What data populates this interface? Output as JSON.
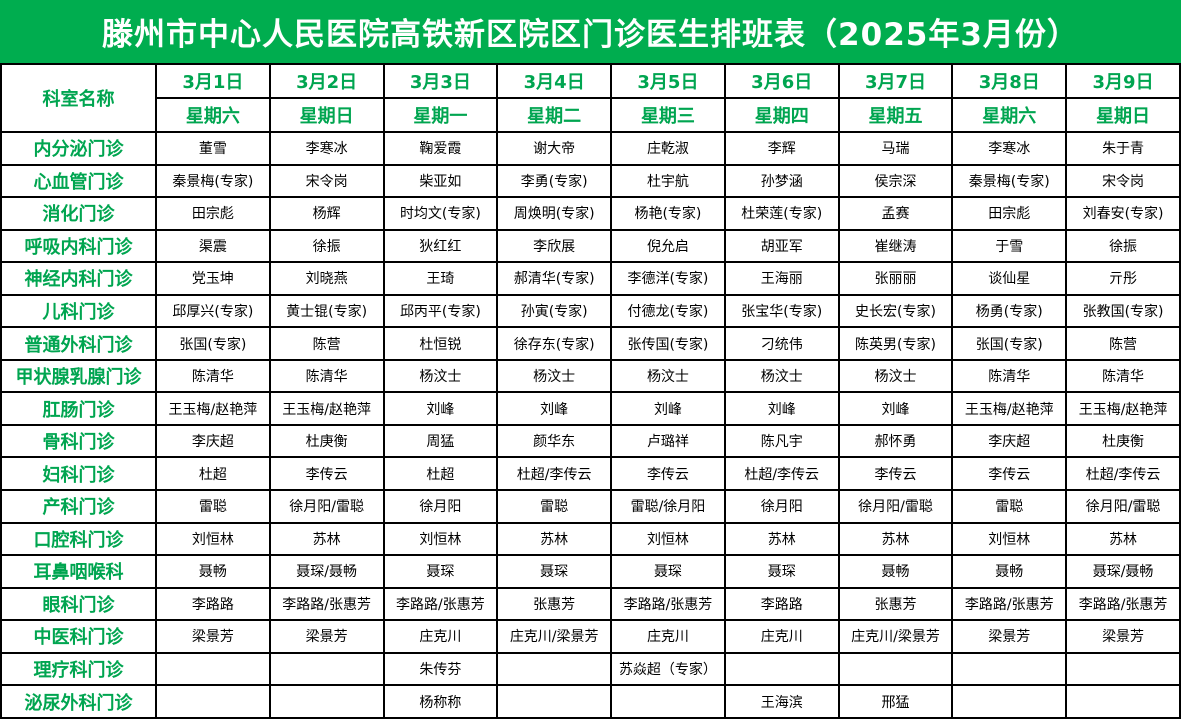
{
  "title": "滕州市中心人民医院高铁新区院区门诊医生排班表（2025年3月份）",
  "colors": {
    "green_bar": "#00AD4F",
    "green_text": "#00A550",
    "body_text": "#000000",
    "title_text": "#ffffff",
    "border": "#000000"
  },
  "table": {
    "corner_label": "科室名称",
    "dates": [
      "3月1日",
      "3月2日",
      "3月3日",
      "3月4日",
      "3月5日",
      "3月6日",
      "3月7日",
      "3月8日",
      "3月9日"
    ],
    "weekdays": [
      "星期六",
      "星期日",
      "星期一",
      "星期二",
      "星期三",
      "星期四",
      "星期五",
      "星期六",
      "星期日"
    ],
    "rows": [
      {
        "department": "内分泌门诊",
        "cells": [
          "董雪",
          "李寒冰",
          "鞠爱霞",
          "谢大帝",
          "庄乾淑",
          "李辉",
          "马瑞",
          "李寒冰",
          "朱于青"
        ]
      },
      {
        "department": "心血管门诊",
        "cells": [
          "秦景梅(专家)",
          "宋令岗",
          "柴亚如",
          "李勇(专家)",
          "杜宇航",
          "孙梦涵",
          "侯宗深",
          "秦景梅(专家)",
          "宋令岗"
        ]
      },
      {
        "department": "消化门诊",
        "cells": [
          "田宗彪",
          "杨辉",
          "时均文(专家)",
          "周焕明(专家)",
          "杨艳(专家)",
          "杜荣莲(专家)",
          "孟赛",
          "田宗彪",
          "刘春安(专家)"
        ]
      },
      {
        "department": "呼吸内科门诊",
        "cells": [
          "渠震",
          "徐振",
          "狄红红",
          "李欣展",
          "倪允启",
          "胡亚军",
          "崔继涛",
          "于雪",
          "徐振"
        ]
      },
      {
        "department": "神经内科门诊",
        "cells": [
          "党玉坤",
          "刘晓燕",
          "王琦",
          "郝清华(专家)",
          "李德洋(专家)",
          "王海丽",
          "张丽丽",
          "谈仙星",
          "亓彤"
        ]
      },
      {
        "department": "儿科门诊",
        "cells": [
          "邱厚兴(专家)",
          "黄士锟(专家)",
          "邱丙平(专家)",
          "孙寅(专家)",
          "付德龙(专家)",
          "张宝华(专家)",
          "史长宏(专家)",
          "杨勇(专家)",
          "张教国(专家)"
        ]
      },
      {
        "department": "普通外科门诊",
        "cells": [
          "张国(专家)",
          "陈营",
          "杜恒锐",
          "徐存东(专家)",
          "张传国(专家)",
          "刁统伟",
          "陈英男(专家)",
          "张国(专家)",
          "陈营"
        ]
      },
      {
        "department": "甲状腺乳腺门诊",
        "cells": [
          "陈清华",
          "陈清华",
          "杨汶士",
          "杨汶士",
          "杨汶士",
          "杨汶士",
          "杨汶士",
          "陈清华",
          "陈清华"
        ]
      },
      {
        "department": "肛肠门诊",
        "cells": [
          "王玉梅/赵艳萍",
          "王玉梅/赵艳萍",
          "刘峰",
          "刘峰",
          "刘峰",
          "刘峰",
          "刘峰",
          "王玉梅/赵艳萍",
          "王玉梅/赵艳萍"
        ]
      },
      {
        "department": "骨科门诊",
        "cells": [
          "李庆超",
          "杜庚衡",
          "周猛",
          "颜华东",
          "卢璐祥",
          "陈凡宇",
          "郝怀勇",
          "李庆超",
          "杜庚衡"
        ]
      },
      {
        "department": "妇科门诊",
        "cells": [
          "杜超",
          "李传云",
          "杜超",
          "杜超/李传云",
          "李传云",
          "杜超/李传云",
          "李传云",
          "李传云",
          "杜超/李传云"
        ]
      },
      {
        "department": "产科门诊",
        "cells": [
          "雷聪",
          "徐月阳/雷聪",
          "徐月阳",
          "雷聪",
          "雷聪/徐月阳",
          "徐月阳",
          "徐月阳/雷聪",
          "雷聪",
          "徐月阳/雷聪"
        ]
      },
      {
        "department": "口腔科门诊",
        "cells": [
          "刘恒林",
          "苏林",
          "刘恒林",
          "苏林",
          "刘恒林",
          "苏林",
          "苏林",
          "刘恒林",
          "苏林"
        ]
      },
      {
        "department": "耳鼻咽喉科",
        "cells": [
          "聂畅",
          "聂琛/聂畅",
          "聂琛",
          "聂琛",
          "聂琛",
          "聂琛",
          "聂畅",
          "聂畅",
          "聂琛/聂畅"
        ]
      },
      {
        "department": "眼科门诊",
        "cells": [
          "李路路",
          "李路路/张惠芳",
          "李路路/张惠芳",
          "张惠芳",
          "李路路/张惠芳",
          "李路路",
          "张惠芳",
          "李路路/张惠芳",
          "李路路/张惠芳"
        ]
      },
      {
        "department": "中医科门诊",
        "cells": [
          "梁景芳",
          "梁景芳",
          "庄克川",
          "庄克川/梁景芳",
          "庄克川",
          "庄克川",
          "庄克川/梁景芳",
          "梁景芳",
          "梁景芳"
        ]
      },
      {
        "department": "理疗科门诊",
        "cells": [
          "",
          "",
          "朱传芬",
          "",
          "苏焱超（专家）",
          "",
          "",
          "",
          ""
        ]
      },
      {
        "department": "泌尿外科门诊",
        "cells": [
          "",
          "",
          "杨称称",
          "",
          "",
          "王海滨",
          "邢猛",
          "",
          ""
        ]
      }
    ]
  }
}
